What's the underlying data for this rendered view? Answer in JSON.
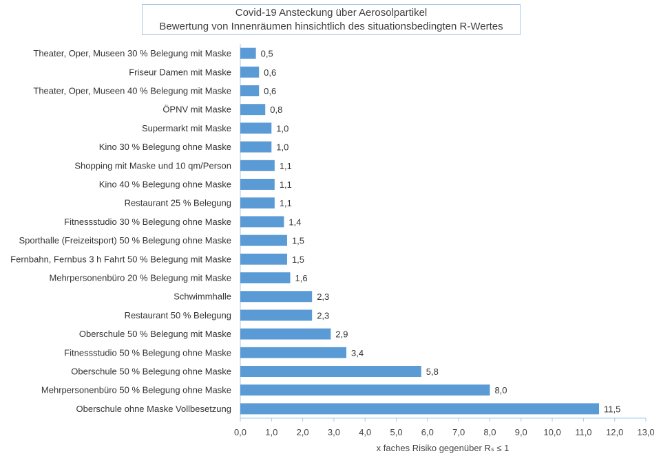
{
  "chart_data": {
    "type": "bar",
    "orientation": "horizontal",
    "title": "Covid-19 Ansteckung über Aerosolpartikel",
    "subtitle": "Bewertung von Innenräumen hinsichtlich des situationsbedingten R-Wertes",
    "xlabel": "x faches Risiko gegenüber Rₛ ≤ 1",
    "ylabel": "",
    "xlim": [
      0,
      13
    ],
    "xticks": [
      "0,0",
      "1,0",
      "2,0",
      "3,0",
      "4,0",
      "5,0",
      "6,0",
      "7,0",
      "8,0",
      "9,0",
      "10,0",
      "11,0",
      "12,0",
      "13,0"
    ],
    "grid": false,
    "bar_color": "#5b9bd5",
    "categories": [
      "Theater, Oper, Museen 30 % Belegung mit Maske",
      "Friseur Damen mit Maske",
      "Theater, Oper, Museen 40 % Belegung mit Maske",
      "ÖPNV mit Maske",
      "Supermarkt mit Maske",
      "Kino 30 % Belegung ohne Maske",
      "Shopping mit Maske und 10 qm/Person",
      "Kino 40 % Belegung ohne Maske",
      "Restaurant 25 % Belegung",
      "Fitnessstudio 30 % Belegung ohne Maske",
      "Sporthalle  (Freizeitsport) 50 % Belegung ohne Maske",
      "Fernbahn, Fernbus 3 h Fahrt 50 % Belegung mit Maske",
      "Mehrpersonenbüro 20 % Belegung mit Maske",
      "Schwimmhalle",
      "Restaurant 50 % Belegung",
      "Oberschule 50 % Belegung mit Maske",
      "Fitnessstudio 50 % Belegung ohne Maske",
      "Oberschule 50 % Belegung ohne Maske",
      "Mehrpersonenbüro 50 % Belegung ohne Maske",
      "Oberschule ohne Maske Vollbesetzung"
    ],
    "values": [
      0.5,
      0.6,
      0.6,
      0.8,
      1.0,
      1.0,
      1.1,
      1.1,
      1.1,
      1.4,
      1.5,
      1.5,
      1.6,
      2.3,
      2.3,
      2.9,
      3.4,
      5.8,
      8.0,
      11.5
    ],
    "data_labels": [
      "0,5",
      "0,6",
      "0,6",
      "0,8",
      "1,0",
      "1,0",
      "1,1",
      "1,1",
      "1,1",
      "1,4",
      "1,5",
      "1,5",
      "1,6",
      "2,3",
      "2,3",
      "2,9",
      "3,4",
      "5,8",
      "8,0",
      "11,5"
    ]
  }
}
